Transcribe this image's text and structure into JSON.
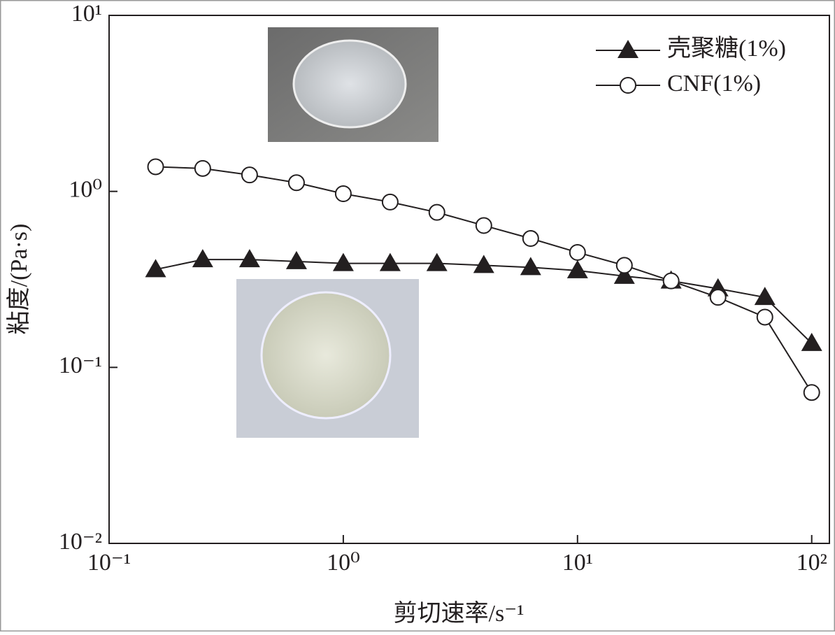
{
  "chart_data": {
    "type": "line",
    "x_label": "剪切速率/s⁻¹",
    "y_label": "粘度/(Pa·s)",
    "x": [
      0.158,
      0.251,
      0.398,
      0.631,
      1,
      1.585,
      2.51,
      3.98,
      6.31,
      10,
      15.85,
      25.1,
      39.8,
      63.1,
      100
    ],
    "series": [
      {
        "name": "壳聚糖(1%)",
        "color": "#231f20",
        "marker": "triangle",
        "values": [
          0.36,
          0.41,
          0.41,
          0.4,
          0.39,
          0.39,
          0.39,
          0.38,
          0.37,
          0.355,
          0.33,
          0.31,
          0.28,
          0.25,
          0.137
        ]
      },
      {
        "name": "CNF(1%)",
        "color": "#231f20",
        "marker": "circle",
        "values": [
          1.38,
          1.35,
          1.24,
          1.12,
          0.97,
          0.87,
          0.76,
          0.64,
          0.54,
          0.45,
          0.38,
          0.31,
          0.25,
          0.193,
          0.072
        ]
      }
    ],
    "xscale": "log",
    "yscale": "log",
    "xlim": [
      0.1,
      119
    ],
    "ylim": [
      0.01,
      10
    ],
    "xticks": [
      {
        "value": 0.1,
        "label": "10⁻¹"
      },
      {
        "value": 1,
        "label": "10⁰"
      },
      {
        "value": 10,
        "label": "10¹"
      },
      {
        "value": 100,
        "label": "10²"
      }
    ],
    "yticks": [
      {
        "value": 0.01,
        "label": "10⁻²"
      },
      {
        "value": 0.1,
        "label": "10⁻¹"
      },
      {
        "value": 1,
        "label": "10⁰"
      },
      {
        "value": 10,
        "label": "10¹"
      }
    ],
    "legend": "upper right"
  }
}
